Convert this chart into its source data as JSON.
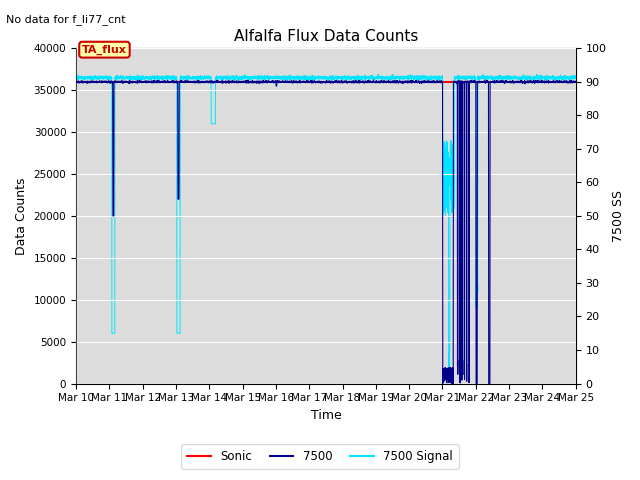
{
  "title": "Alfalfa Flux Data Counts",
  "subtitle": "No data for f_li77_cnt",
  "xlabel": "Time",
  "ylabel_left": "Data Counts",
  "ylabel_right": "7500 SS",
  "ylim_left": [
    0,
    40000
  ],
  "ylim_right": [
    0,
    100
  ],
  "yticks_left": [
    0,
    5000,
    10000,
    15000,
    20000,
    25000,
    30000,
    35000,
    40000
  ],
  "yticks_right": [
    0,
    10,
    20,
    30,
    40,
    50,
    60,
    70,
    80,
    90,
    100
  ],
  "xtick_labels": [
    "Mar 10",
    "Mar 11",
    "Mar 12",
    "Mar 13",
    "Mar 14",
    "Mar 15",
    "Mar 16",
    "Mar 17",
    "Mar 18",
    "Mar 19",
    "Mar 20",
    "Mar 21",
    "Mar 22",
    "Mar 23",
    "Mar 24",
    "Mar 25"
  ],
  "bg_color": "#dcdcdc",
  "legend_labels": [
    "Sonic",
    "7500",
    "7500 Signal"
  ],
  "legend_colors": [
    "#ff0000",
    "#00008b",
    "#00e5ff"
  ],
  "box_label": "TA_flux",
  "box_facecolor": "#ffffaa",
  "box_edgecolor": "#cc0000",
  "sonic_color": "#ff0000",
  "li7500_color": "#00008b",
  "signal_color": "#00e5ff",
  "grid_color": "#ffffff"
}
